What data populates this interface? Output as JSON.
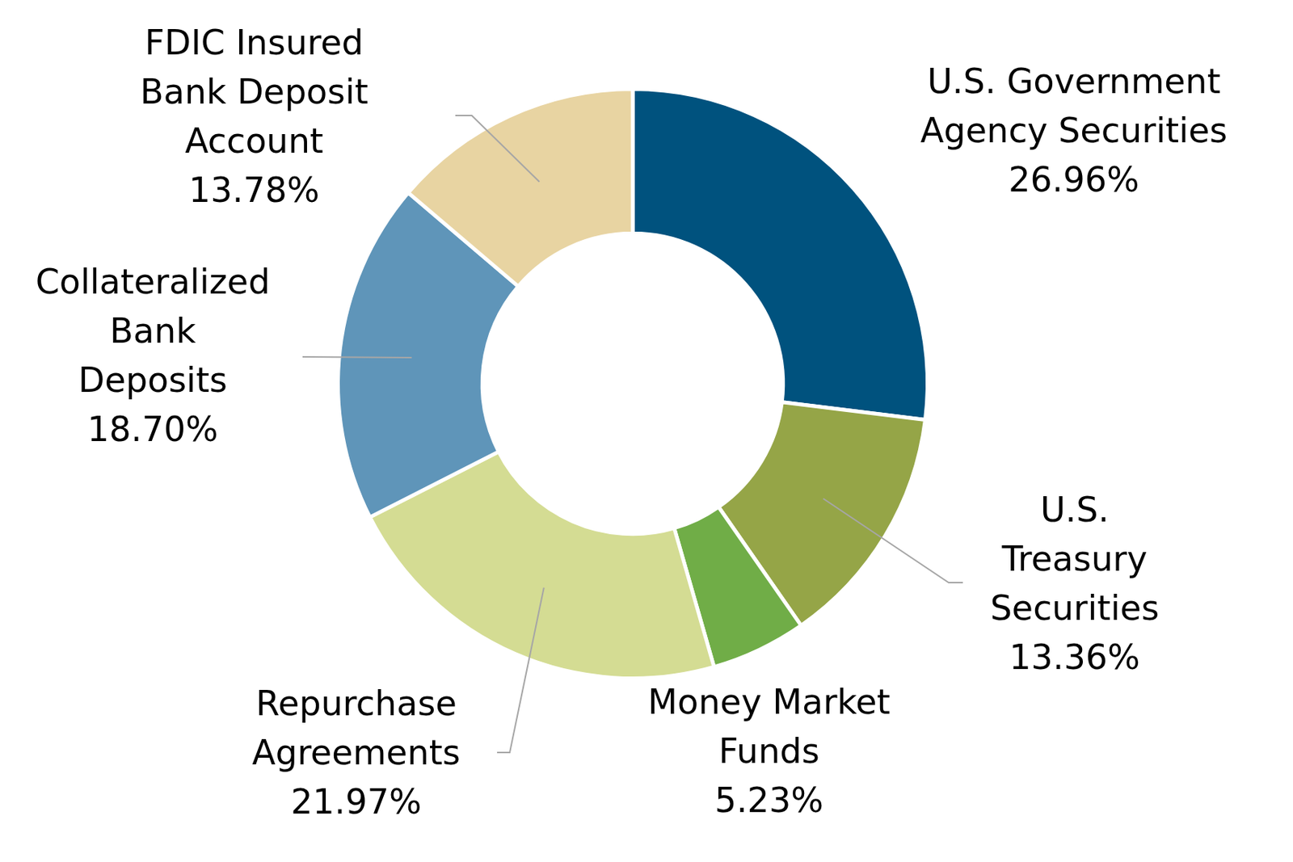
{
  "chart_data": {
    "type": "doughnut",
    "categories": [
      "U.S. Government\nAgency Securities",
      "U.S.\nTreasury\nSecurities",
      "Money Market\nFunds",
      "Repurchase\nAgreements",
      "Collateralized\nBank\nDeposits",
      "FDIC Insured\nBank Deposit\nAccount"
    ],
    "values": [
      26.96,
      13.36,
      5.23,
      21.97,
      18.7,
      13.78
    ],
    "value_labels": [
      "26.96%",
      "13.36%",
      "5.23%",
      "21.97%",
      "18.70%",
      "13.78%"
    ],
    "colors": [
      "#00527e",
      "#95a547",
      "#70ad47",
      "#d4dc93",
      "#5f95b9",
      "#e8d4a2"
    ],
    "data_labels": true
  }
}
